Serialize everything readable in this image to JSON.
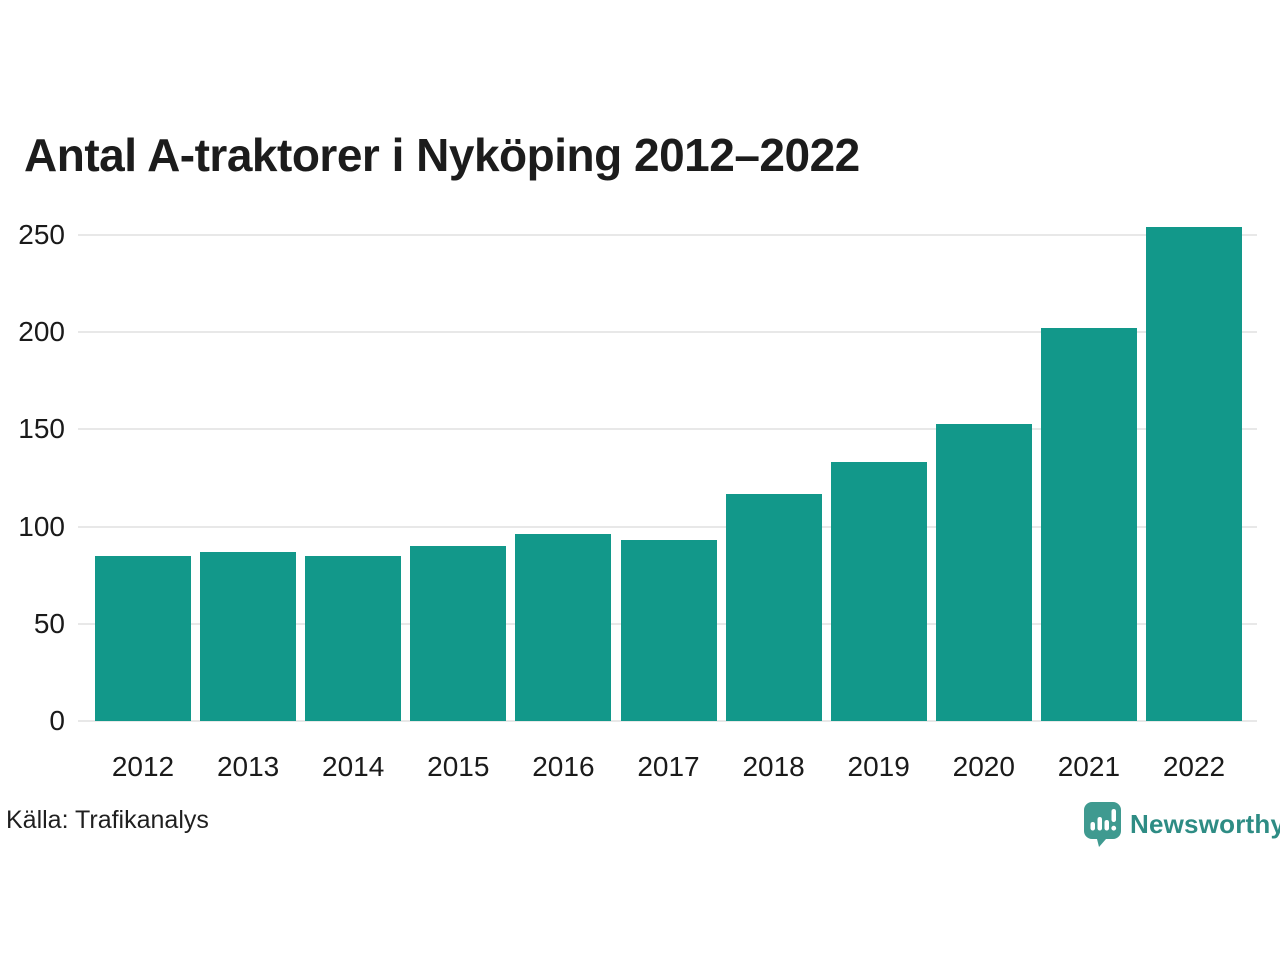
{
  "title": "Antal A-traktorer i Nyköping 2012–2022",
  "source": "Källa: Trafikanalys",
  "brand": {
    "name": "Newsworthy",
    "icon": "newsworthy-bubble-barchart-icon",
    "text_color": "#2e8c84",
    "icon_color": "#3f9a90"
  },
  "colors": {
    "bar": "#12988a",
    "grid": "#e8e8e8",
    "title_text": "#1c1c1c",
    "axis_text": "#1a1a1a"
  },
  "chart_data": {
    "type": "bar",
    "categories": [
      "2012",
      "2013",
      "2014",
      "2015",
      "2016",
      "2017",
      "2018",
      "2019",
      "2020",
      "2021",
      "2022"
    ],
    "values": [
      85,
      87,
      85,
      90,
      96,
      93,
      117,
      133,
      153,
      202,
      254
    ],
    "title": "Antal A-traktorer i Nyköping 2012–2022",
    "xlabel": "",
    "ylabel": "",
    "ylim": [
      0,
      250
    ],
    "yticks": [
      0,
      50,
      100,
      150,
      200,
      250
    ],
    "grid": true,
    "legend": false,
    "bar_color": "#12988a"
  }
}
